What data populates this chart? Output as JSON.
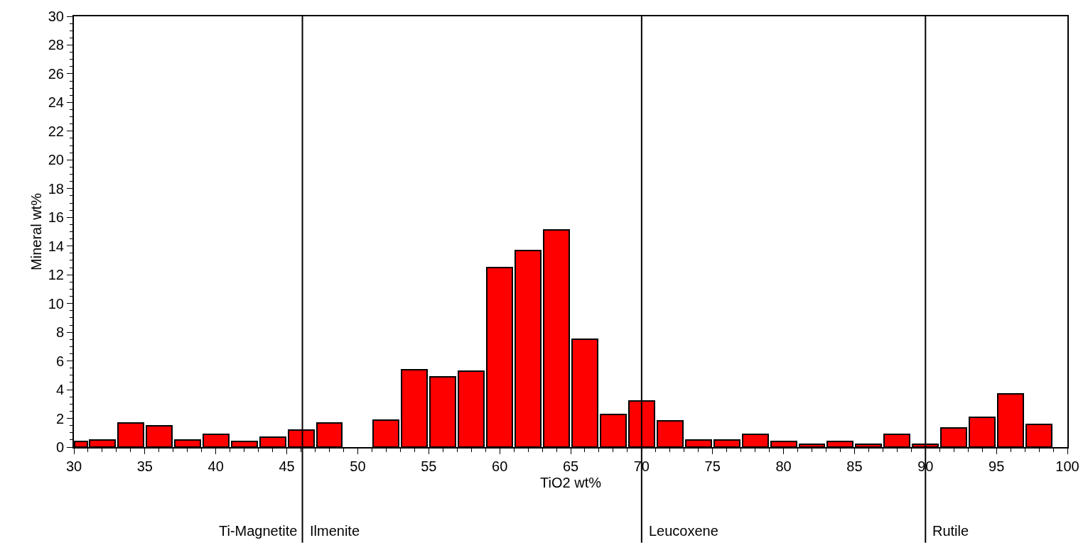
{
  "chart_data": {
    "type": "histogram",
    "xlabel": "TiO2 wt%",
    "ylabel": "Mineral wt%",
    "bins": [
      30,
      31,
      33,
      35,
      37,
      39,
      41,
      43,
      45,
      47,
      49,
      51,
      53,
      55,
      57,
      59,
      61,
      63,
      65,
      67,
      69,
      71,
      73,
      75,
      77,
      79,
      81,
      83,
      85,
      87,
      89,
      91,
      93,
      95,
      97,
      99
    ],
    "values": [
      0.4,
      0.5,
      1.7,
      1.5,
      0.5,
      0.9,
      0.4,
      0.7,
      1.2,
      1.7,
      0,
      1.9,
      5.4,
      4.9,
      5.3,
      12.5,
      13.7,
      15.1,
      7.5,
      2.25,
      3.2,
      1.85,
      0.5,
      0.5,
      0.9,
      0.4,
      0.2,
      0.4,
      0.2,
      0.9,
      0.2,
      1.35,
      2.1,
      3.7,
      1.6
    ],
    "color": "#ff0000",
    "xlim": [
      30,
      100
    ],
    "xticks": [
      30,
      35,
      40,
      45,
      50,
      55,
      60,
      65,
      70,
      75,
      80,
      85,
      90,
      95,
      100
    ],
    "ylim": [
      0,
      30
    ],
    "yticks": [
      0,
      2,
      4,
      6,
      8,
      10,
      12,
      14,
      16,
      18,
      20,
      22,
      24,
      26,
      28,
      30
    ],
    "ref_lines": [
      {
        "axis": "x",
        "value": 46.1,
        "color": "#000000",
        "label": "Ilmenite"
      },
      {
        "axis": "x",
        "value": 70,
        "color": "#000000",
        "label": "Leucoxene"
      },
      {
        "axis": "x",
        "value": 90,
        "color": "#000000",
        "label": "Rutile"
      }
    ],
    "annotations": [
      "Ti-Magnetite"
    ]
  }
}
